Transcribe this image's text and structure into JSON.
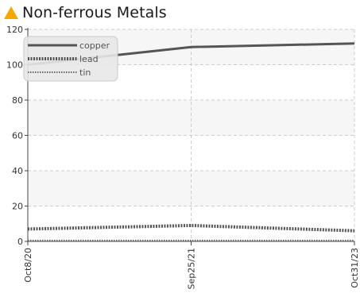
{
  "header": {
    "title": "Non-ferrous Metals",
    "icon": "warning-triangle-icon",
    "icon_color": "#f5a800"
  },
  "chart_data": {
    "type": "line",
    "title": "Non-ferrous Metals",
    "xlabel": "",
    "ylabel": "",
    "x": [
      "Oct8/20",
      "Sep25/21",
      "Oct31/23"
    ],
    "x_tick_labels": [
      "Oct8/20",
      "Sep25/21",
      "Oct31/23"
    ],
    "ylim": [
      0,
      120
    ],
    "y_ticks": [
      0,
      20,
      40,
      60,
      80,
      100,
      120
    ],
    "grid": true,
    "legend_position": "top-left",
    "series": [
      {
        "name": "copper",
        "values": [
          100,
          110,
          112
        ],
        "color": "#555555",
        "style": "solid"
      },
      {
        "name": "lead",
        "values": [
          7,
          9,
          6
        ],
        "color": "#555555",
        "style": "dashed"
      },
      {
        "name": "tin",
        "values": [
          0.5,
          0.5,
          0.5
        ],
        "color": "#666666",
        "style": "dotted"
      }
    ]
  }
}
